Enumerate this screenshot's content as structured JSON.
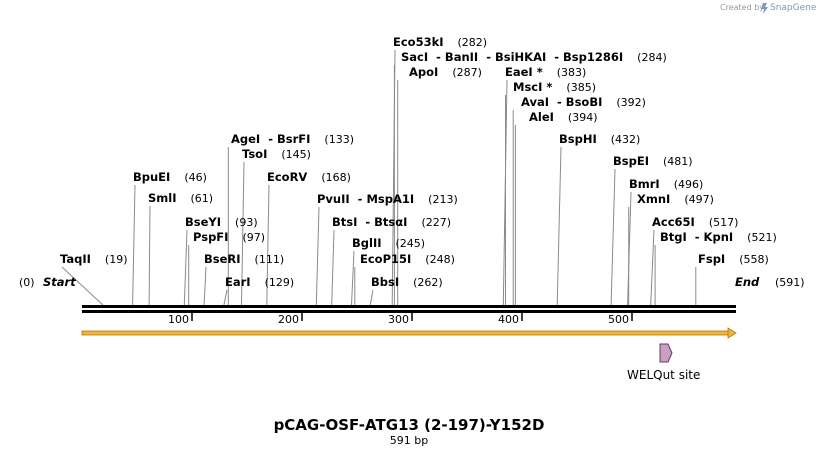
{
  "watermark": {
    "created_by": "Created by",
    "brand": "SnapGene"
  },
  "plasmid": {
    "name": "pCAG-OSF-ATG13 (2-197)-Y152D",
    "length_label": "591 bp",
    "length": 591
  },
  "start_marker": {
    "label": "Start",
    "position": "(0)"
  },
  "end_marker": {
    "label": "End",
    "position": "(591)"
  },
  "ticks": [
    "100",
    "200",
    "300",
    "400",
    "500"
  ],
  "sites": [
    {
      "name": "TaqII",
      "pos": 19
    },
    {
      "name": "BpuEI",
      "pos": 46
    },
    {
      "name": "SmlI",
      "pos": 61
    },
    {
      "name": "BseYI",
      "pos": 93
    },
    {
      "name": "PspFI",
      "pos": 97
    },
    {
      "name": "BseRI",
      "pos": 111
    },
    {
      "name": "EarI",
      "pos": 129
    },
    {
      "name": "AgeI - BsrFI",
      "pos": 133
    },
    {
      "name": "TsoI",
      "pos": 145
    },
    {
      "name": "EcoRV",
      "pos": 168
    },
    {
      "name": "PvuII - MspA1I",
      "pos": 213
    },
    {
      "name": "BtsI - BtsαI",
      "pos": 227
    },
    {
      "name": "BglII",
      "pos": 245
    },
    {
      "name": "EcoP15I",
      "pos": 248
    },
    {
      "name": "BbsI",
      "pos": 262
    },
    {
      "name": "Eco53kI",
      "pos": 282
    },
    {
      "name": "SacI - BanII - BsiHKAI - Bsp1286I",
      "pos": 284
    },
    {
      "name": "ApoI",
      "pos": 287
    },
    {
      "name": "EaeI *",
      "pos": 383
    },
    {
      "name": "MscI *",
      "pos": 385
    },
    {
      "name": "AvaI - BsoBI",
      "pos": 392
    },
    {
      "name": "AleI",
      "pos": 394
    },
    {
      "name": "BspHI",
      "pos": 432
    },
    {
      "name": "BspEI",
      "pos": 481
    },
    {
      "name": "BmrI",
      "pos": 496
    },
    {
      "name": "XmnI",
      "pos": 497
    },
    {
      "name": "Acc65I",
      "pos": 517
    },
    {
      "name": "BtgI - KpnI",
      "pos": 521
    },
    {
      "name": "FspI",
      "pos": 558
    }
  ],
  "feature": {
    "label": "WELQut site",
    "color": "#c9a0c0"
  },
  "colors": {
    "sequence_bar": "#f2b43a",
    "line": "#000000",
    "leader": "#8a8a8a"
  }
}
